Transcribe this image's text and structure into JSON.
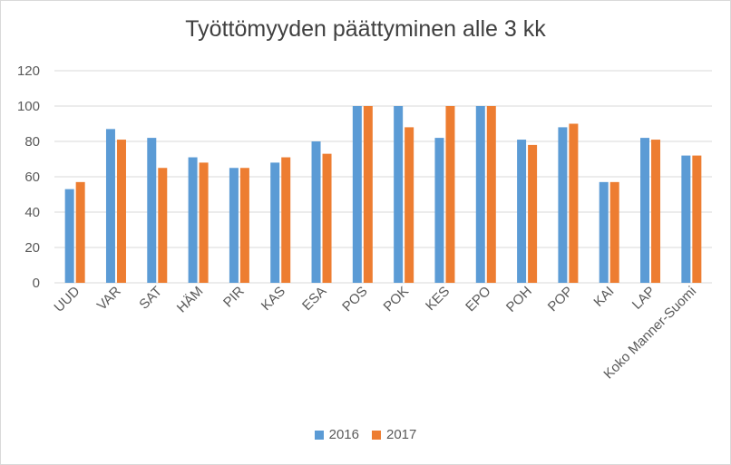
{
  "chart_data": {
    "type": "bar",
    "title": "Työttömyyden päättyminen alle 3 kk",
    "xlabel": "",
    "ylabel": "",
    "ylim": [
      0,
      120
    ],
    "yticks": [
      0,
      20,
      40,
      60,
      80,
      100,
      120
    ],
    "grid": true,
    "legend_position": "bottom",
    "categories": [
      "UUD",
      "VAR",
      "SAT",
      "HÄM",
      "PIR",
      "KAS",
      "ESA",
      "POS",
      "POK",
      "KES",
      "EPO",
      "POH",
      "POP",
      "KAI",
      "LAP",
      "Koko Manner-Suomi"
    ],
    "series": [
      {
        "name": "2016",
        "color": "#5b9bd5",
        "values": [
          53,
          87,
          82,
          71,
          65,
          68,
          80,
          100,
          100,
          82,
          100,
          81,
          88,
          57,
          82,
          72
        ]
      },
      {
        "name": "2017",
        "color": "#ed7d31",
        "values": [
          57,
          81,
          65,
          68,
          65,
          71,
          73,
          100,
          88,
          100,
          100,
          78,
          90,
          57,
          81,
          72
        ]
      }
    ]
  }
}
